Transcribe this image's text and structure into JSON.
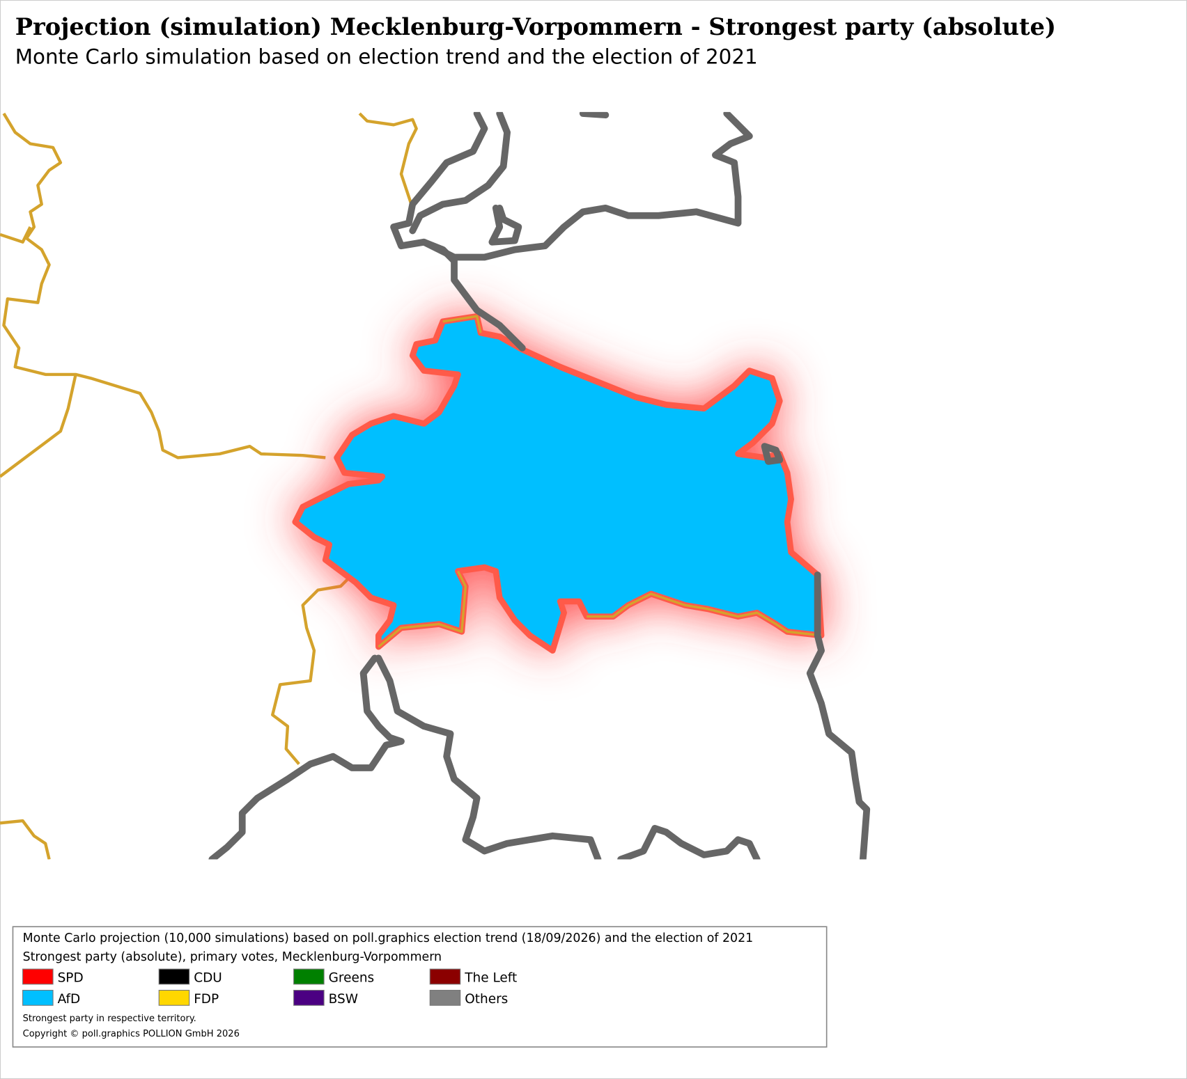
{
  "header": {
    "title": "Projection (simulation) Mecklenburg-Vorpommern - Strongest party (absolute)",
    "subtitle": "Monte Carlo simulation based on election trend and the election of 2021"
  },
  "legend": {
    "lines": [
      "Monte Carlo projection (10,000 simulations) based on poll.graphics election trend (18/09/2026) and the election of 2021",
      "Strongest party (absolute), primary votes, Mecklenburg-Vorpommern"
    ],
    "items": [
      {
        "label": "SPD",
        "color": "#ff0000"
      },
      {
        "label": "CDU",
        "color": "#000000"
      },
      {
        "label": "Greens",
        "color": "#008000"
      },
      {
        "label": "The Left",
        "color": "#8b0000"
      },
      {
        "label": "AfD",
        "color": "#00bfff"
      },
      {
        "label": "FDP",
        "color": "#ffd700"
      },
      {
        "label": "BSW",
        "color": "#4b0082"
      },
      {
        "label": "Others",
        "color": "#808080"
      }
    ],
    "notes": [
      "Strongest party in respective territory.",
      "Copyright © poll.graphics POLLION GmbH 2026"
    ]
  }
}
